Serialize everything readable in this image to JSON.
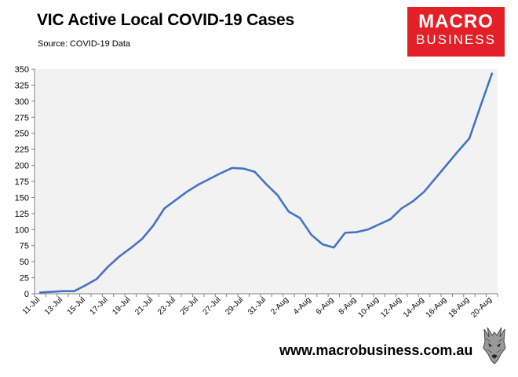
{
  "header": {
    "title": "VIC Active Local COVID-19 Cases",
    "source": "Source: COVID-19 Data"
  },
  "brand": {
    "logo_line1": "MACRO",
    "logo_line2": "BUSINESS",
    "logo_color": "#e32027",
    "website": "www.macrobusiness.com.au",
    "wolf_icon": "wolf-head-icon"
  },
  "chart_data": {
    "type": "line",
    "title": "VIC Active Local COVID-19 Cases",
    "subtitle": "Source: COVID-19 Data",
    "xlabel": "",
    "ylabel": "",
    "ylim": [
      0,
      350
    ],
    "yticks": [
      0,
      25,
      50,
      75,
      100,
      125,
      150,
      175,
      200,
      225,
      250,
      275,
      300,
      325,
      350
    ],
    "x": [
      "11-Jul",
      "12-Jul",
      "13-Jul",
      "14-Jul",
      "15-Jul",
      "16-Jul",
      "17-Jul",
      "18-Jul",
      "19-Jul",
      "20-Jul",
      "21-Jul",
      "22-Jul",
      "23-Jul",
      "24-Jul",
      "25-Jul",
      "26-Jul",
      "27-Jul",
      "28-Jul",
      "29-Jul",
      "30-Jul",
      "31-Jul",
      "1-Aug",
      "2-Aug",
      "3-Aug",
      "4-Aug",
      "5-Aug",
      "6-Aug",
      "7-Aug",
      "8-Aug",
      "9-Aug",
      "10-Aug",
      "11-Aug",
      "12-Aug",
      "13-Aug",
      "14-Aug",
      "15-Aug",
      "16-Aug",
      "17-Aug",
      "18-Aug",
      "19-Aug",
      "20-Aug"
    ],
    "xtick_labels": [
      "11-Jul",
      "13-Jul",
      "15-Jul",
      "17-Jul",
      "19-Jul",
      "21-Jul",
      "23-Jul",
      "25-Jul",
      "27-Jul",
      "29-Jul",
      "31-Jul",
      "2-Aug",
      "4-Aug",
      "6-Aug",
      "8-Aug",
      "10-Aug",
      "12-Aug",
      "14-Aug",
      "16-Aug",
      "18-Aug",
      "20-Aug"
    ],
    "series": [
      {
        "values": [
          2,
          3,
          4,
          4,
          13,
          23,
          42,
          58,
          71,
          85,
          106,
          133,
          146,
          159,
          170,
          179,
          188,
          196,
          195,
          190,
          171,
          154,
          128,
          118,
          92,
          77,
          72,
          95,
          96,
          100,
          108,
          116,
          133,
          144,
          159,
          180,
          201,
          222,
          242,
          293,
          343
        ],
        "color": "#4472c4"
      }
    ],
    "grid": false,
    "plot_background": "#f2f2f2",
    "legend": "none"
  }
}
